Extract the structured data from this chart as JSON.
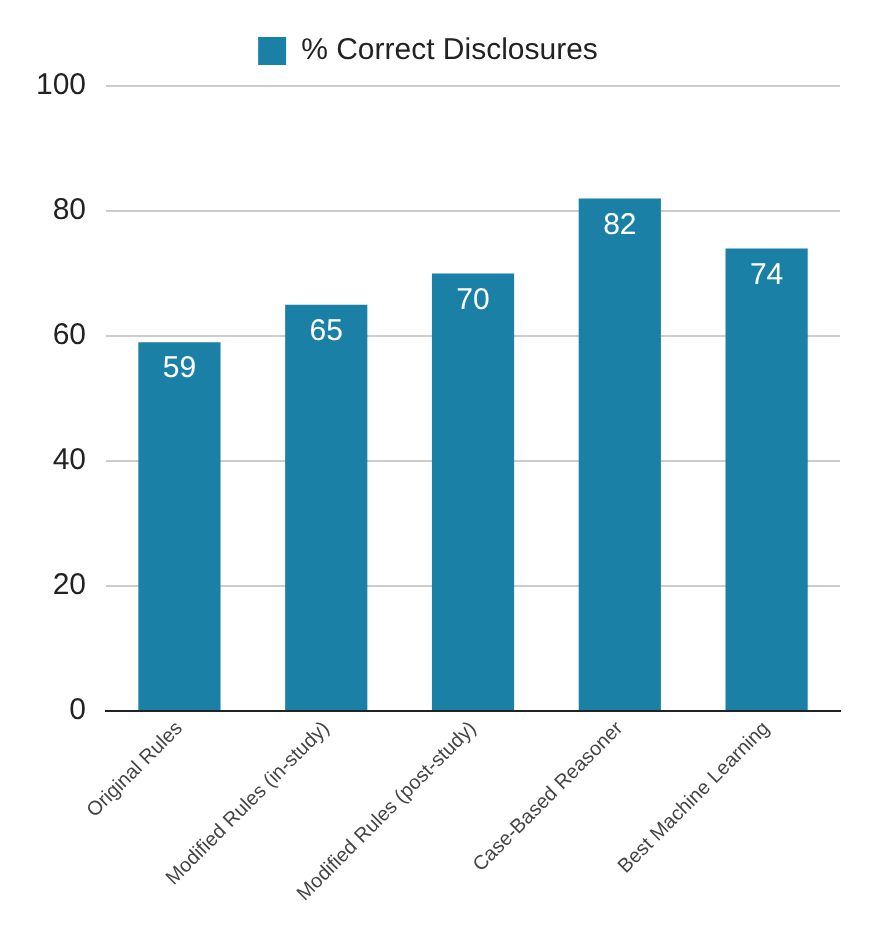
{
  "chart_data": {
    "type": "bar",
    "categories": [
      "Original Rules",
      "Modified Rules (in-study)",
      "Modified Rules (post-study)",
      "Case-Based Reasoner",
      "Best Machine Learning"
    ],
    "series": [
      {
        "name": "% Correct Disclosures",
        "color": "#1a80a6",
        "values": [
          59,
          65,
          70,
          82,
          74
        ]
      }
    ],
    "ylim": [
      0,
      100
    ],
    "yticks": [
      0,
      20,
      40,
      60,
      80,
      100
    ],
    "grid": "y",
    "legend": "top",
    "data_labels": true
  }
}
